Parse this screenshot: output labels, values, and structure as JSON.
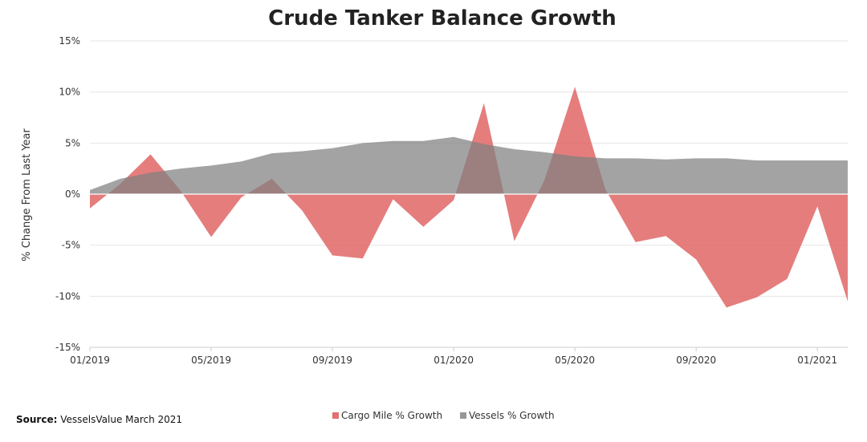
{
  "chart_data": {
    "type": "area",
    "title": "Crude Tanker Balance Growth",
    "xlabel": "",
    "ylabel": "% Change From Last Year",
    "ylim": [
      -15,
      15
    ],
    "y_ticks": [
      15,
      10,
      5,
      0,
      -5,
      -10,
      -15
    ],
    "y_tick_labels": [
      "15%",
      "10%",
      "5%",
      "0%",
      "-5%",
      "-10%",
      "-15%"
    ],
    "x_tick_labels": [
      "01/2019",
      "05/2019",
      "09/2019",
      "01/2020",
      "05/2020",
      "09/2020",
      "01/2021"
    ],
    "x_tick_months": [
      0,
      4,
      8,
      12,
      16,
      20,
      24
    ],
    "x_month_count": 26,
    "grid": true,
    "legend_position": "bottom-center",
    "series": [
      {
        "name": "Cargo Mile % Growth",
        "color": "#e06666",
        "opacity": 0.85,
        "values": [
          -1.4,
          1.0,
          3.9,
          0.3,
          -4.2,
          -0.3,
          1.5,
          -1.6,
          -6.0,
          -6.3,
          -0.5,
          -3.2,
          -0.6,
          8.9,
          -4.6,
          1.4,
          10.5,
          0.5,
          -4.7,
          -4.1,
          -6.4,
          -11.1,
          -10.1,
          -8.3,
          -1.2,
          -10.5
        ]
      },
      {
        "name": "Vessels % Growth",
        "color": "#808080",
        "opacity": 0.72,
        "values": [
          0.4,
          1.5,
          2.1,
          2.5,
          2.8,
          3.2,
          4.0,
          4.2,
          4.5,
          5.0,
          5.2,
          5.2,
          5.6,
          4.9,
          4.4,
          4.1,
          3.7,
          3.5,
          3.5,
          3.4,
          3.5,
          3.5,
          3.3,
          3.3,
          3.3,
          3.3
        ]
      }
    ]
  },
  "source": {
    "label": "Source:",
    "text": "VesselsValue March 2021"
  }
}
